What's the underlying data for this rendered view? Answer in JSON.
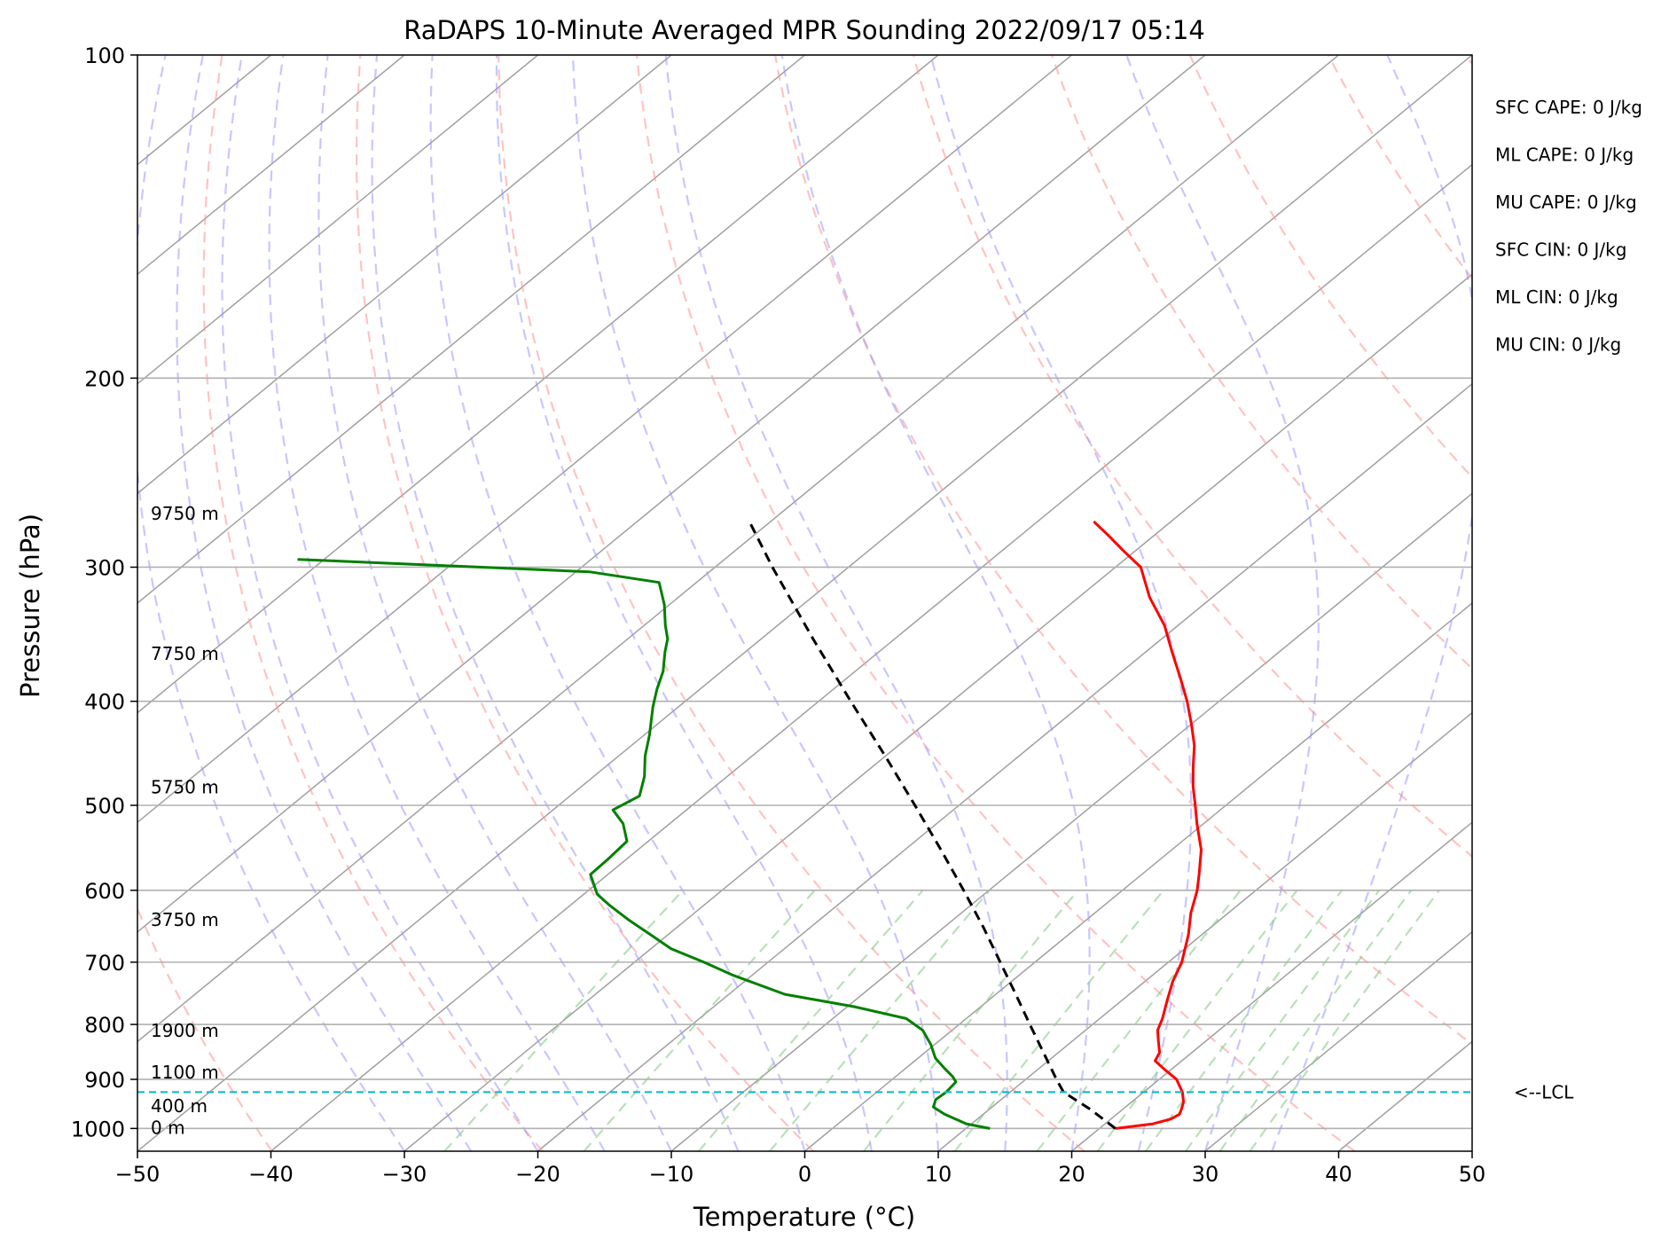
{
  "chart_data": {
    "type": "skew-t",
    "title": "RaDAPS 10-Minute Averaged MPR Sounding 2022/09/17 05:14",
    "xlabel": "Temperature (°C)",
    "ylabel": "Pressure (hPa)",
    "xlim": [
      -50,
      50
    ],
    "ylim": [
      1050,
      100
    ],
    "x_scale": "linear (skewed)",
    "y_scale": "log",
    "grid": true,
    "x_ticks": [
      -50,
      -40,
      -30,
      -20,
      -10,
      0,
      10,
      20,
      30,
      40,
      50
    ],
    "x_tick_labels": [
      "−50",
      "−40",
      "−30",
      "−20",
      "−10",
      "0",
      "10",
      "20",
      "30",
      "40",
      "50"
    ],
    "y_ticks": [
      1000,
      900,
      800,
      700,
      600,
      500,
      400,
      300,
      200,
      100
    ],
    "y_tick_labels": [
      "1000",
      "900",
      "800",
      "700",
      "600",
      "500",
      "400",
      "300",
      "200",
      "100"
    ],
    "series": [
      {
        "kind": "temperature",
        "color": "#ff0000",
        "style": "solid",
        "points": [
          [
            1000,
            21.2
          ],
          [
            990,
            23.6
          ],
          [
            980,
            24.5
          ],
          [
            970,
            24.7
          ],
          [
            960,
            24.4
          ],
          [
            945,
            23.9
          ],
          [
            925,
            22.9
          ],
          [
            900,
            21.3
          ],
          [
            880,
            19.4
          ],
          [
            865,
            18.0
          ],
          [
            850,
            17.6
          ],
          [
            830,
            16.5
          ],
          [
            810,
            15.4
          ],
          [
            790,
            14.7
          ],
          [
            760,
            13.4
          ],
          [
            730,
            12.1
          ],
          [
            700,
            11.0
          ],
          [
            660,
            9.0
          ],
          [
            630,
            7.2
          ],
          [
            600,
            5.6
          ],
          [
            580,
            4.3
          ],
          [
            550,
            2.2
          ],
          [
            520,
            -0.5
          ],
          [
            500,
            -2.3
          ],
          [
            480,
            -4.2
          ],
          [
            460,
            -6.0
          ],
          [
            440,
            -7.8
          ],
          [
            420,
            -10.0
          ],
          [
            400,
            -12.4
          ],
          [
            380,
            -15.1
          ],
          [
            360,
            -18.0
          ],
          [
            340,
            -21.0
          ],
          [
            320,
            -24.7
          ],
          [
            300,
            -28.1
          ],
          [
            290,
            -30.8
          ],
          [
            280,
            -33.5
          ],
          [
            272,
            -35.8
          ]
        ]
      },
      {
        "kind": "dewpoint",
        "color": "#008000",
        "style": "solid",
        "points": [
          [
            1000,
            11.8
          ],
          [
            990,
            9.6
          ],
          [
            970,
            7.1
          ],
          [
            955,
            5.6
          ],
          [
            940,
            5.1
          ],
          [
            925,
            5.2
          ],
          [
            905,
            5.0
          ],
          [
            895,
            4.3
          ],
          [
            880,
            3.0
          ],
          [
            860,
            1.3
          ],
          [
            835,
            -0.3
          ],
          [
            810,
            -2.2
          ],
          [
            790,
            -4.5
          ],
          [
            770,
            -9.5
          ],
          [
            750,
            -15.8
          ],
          [
            720,
            -21.4
          ],
          [
            700,
            -24.8
          ],
          [
            680,
            -28.5
          ],
          [
            660,
            -31.3
          ],
          [
            640,
            -34.2
          ],
          [
            620,
            -37.0
          ],
          [
            605,
            -39.0
          ],
          [
            580,
            -41.3
          ],
          [
            560,
            -41.4
          ],
          [
            540,
            -41.6
          ],
          [
            520,
            -43.5
          ],
          [
            505,
            -45.5
          ],
          [
            490,
            -44.8
          ],
          [
            470,
            -46.2
          ],
          [
            450,
            -48.0
          ],
          [
            430,
            -49.6
          ],
          [
            405,
            -51.9
          ],
          [
            390,
            -53.2
          ],
          [
            375,
            -54.4
          ],
          [
            360,
            -56.0
          ],
          [
            350,
            -57.0
          ],
          [
            340,
            -58.4
          ],
          [
            325,
            -60.4
          ],
          [
            310,
            -62.8
          ],
          [
            303,
            -69.0
          ],
          [
            295,
            -92.0
          ]
        ]
      },
      {
        "kind": "parcel",
        "color": "#000000",
        "style": "dashed",
        "points": [
          [
            1000,
            21.2
          ],
          [
            960,
            17.6
          ],
          [
            925,
            14.0
          ],
          [
            900,
            12.3
          ],
          [
            850,
            8.9
          ],
          [
            800,
            5.3
          ],
          [
            750,
            1.5
          ],
          [
            700,
            -2.6
          ],
          [
            650,
            -7.0
          ],
          [
            600,
            -11.9
          ],
          [
            550,
            -17.3
          ],
          [
            500,
            -23.3
          ],
          [
            450,
            -30.0
          ],
          [
            400,
            -37.6
          ],
          [
            350,
            -46.1
          ],
          [
            300,
            -55.7
          ],
          [
            272,
            -61.6
          ]
        ]
      }
    ],
    "lcl": {
      "pressure": 925,
      "label": "<--LCL",
      "color": "#17becf"
    },
    "height_labels": [
      {
        "text": "0 m",
        "p": 1000
      },
      {
        "text": "400 m",
        "p": 955
      },
      {
        "text": "1100 m",
        "p": 888
      },
      {
        "text": "1900 m",
        "p": 812
      },
      {
        "text": "3750 m",
        "p": 640
      },
      {
        "text": "5750 m",
        "p": 482
      },
      {
        "text": "7750 m",
        "p": 362
      },
      {
        "text": "9750 m",
        "p": 268
      }
    ],
    "indices": [
      {
        "label": "SFC CAPE",
        "value": "0 J/kg"
      },
      {
        "label": "ML CAPE",
        "value": "0 J/kg"
      },
      {
        "label": "MU CAPE",
        "value": "0 J/kg"
      },
      {
        "label": "SFC CIN",
        "value": "0 J/kg"
      },
      {
        "label": "ML CIN",
        "value": "0 J/kg"
      },
      {
        "label": "MU CIN",
        "value": "0 J/kg"
      }
    ],
    "background_lines": {
      "isotherms": {
        "color": "#a0a0a0",
        "style": "solid"
      },
      "dry_adiabats": {
        "color": "#ff9999",
        "style": "dashed",
        "theta_k": [
          210,
          230,
          250,
          270,
          290,
          310,
          330,
          350,
          370,
          390,
          410,
          430,
          450,
          470,
          490
        ]
      },
      "moist_adiabats": {
        "color": "#9999ff",
        "style": "dashed",
        "start_temps_c": [
          -30,
          -25,
          -20,
          -15,
          -10,
          -5,
          0,
          5,
          10,
          15,
          20,
          25,
          30,
          35
        ]
      },
      "mixing_ratio": {
        "color": "#88cc88",
        "style": "dashed",
        "g_per_kg": [
          0.4,
          1,
          2,
          3,
          5,
          8,
          12,
          16,
          20,
          24,
          28,
          32
        ]
      }
    }
  }
}
